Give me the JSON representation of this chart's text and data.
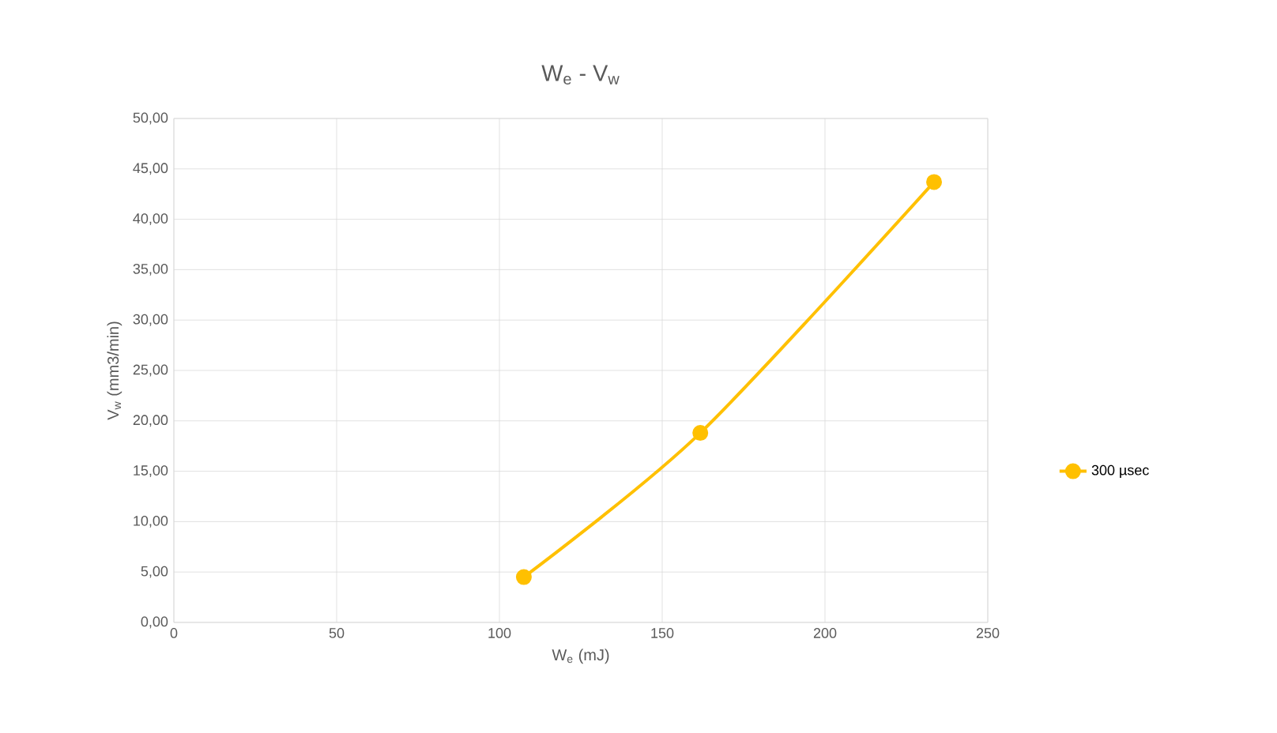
{
  "chart_data": {
    "type": "line",
    "title": "W$_{e}$ - V$_{w}$",
    "xlabel": "W$_{e}$ (mJ)",
    "ylabel": "V$_{w}$  (mm3/min)",
    "series": [
      {
        "name": "300 µsec",
        "color": "#ffc000",
        "x": [
          107.5,
          161.7,
          233.5
        ],
        "values": [
          4.5,
          18.8,
          43.7
        ]
      }
    ],
    "xlim": [
      0,
      250
    ],
    "xticks": [
      0,
      50,
      100,
      150,
      200,
      250
    ],
    "ylim": [
      0,
      50
    ],
    "yticks": [
      {
        "value": 0,
        "label": "0,00"
      },
      {
        "value": 5,
        "label": "5,00"
      },
      {
        "value": 10,
        "label": "10,00"
      },
      {
        "value": 15,
        "label": "15,00"
      },
      {
        "value": 20,
        "label": "20,00"
      },
      {
        "value": 25,
        "label": "25,00"
      },
      {
        "value": 30,
        "label": "30,00"
      },
      {
        "value": 35,
        "label": "35,00"
      },
      {
        "value": 40,
        "label": "40,00"
      },
      {
        "value": 45,
        "label": "45,00"
      },
      {
        "value": 50,
        "label": "50,00"
      }
    ],
    "grid": true,
    "legend": "right",
    "marker": "circle",
    "line_style": "solid"
  }
}
